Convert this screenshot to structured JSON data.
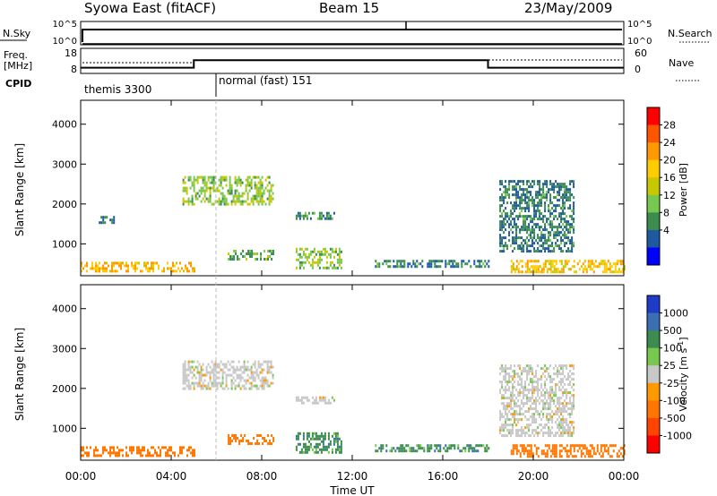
{
  "header": {
    "title": "Syowa East (fitACF)",
    "beam": "Beam 15",
    "date": "23/May/2009"
  },
  "status_panels": {
    "nsky_label": "N.Sky",
    "nsearch_label": "N.Search",
    "freq_label_1": "Freq.",
    "freq_label_2": "[MHz]",
    "nave_label": "Nave",
    "cpid_label": "CPID",
    "left_ticks_top": [
      "10^5",
      "10^0"
    ],
    "right_ticks_top": [
      "10^5",
      "10^0"
    ],
    "left_ticks_freq": [
      "18",
      "8"
    ],
    "right_ticks_nave": [
      "60",
      "0"
    ],
    "cpid_segments": [
      {
        "label": "themis 3300",
        "start_hour": 0,
        "end_hour": 6
      },
      {
        "label": "normal (fast) 151",
        "start_hour": 6,
        "end_hour": 24
      }
    ],
    "freq_steps": [
      {
        "start_hour": 0,
        "end_hour": 5,
        "level": 0.3
      },
      {
        "start_hour": 5,
        "end_hour": 18,
        "level": 0.6
      },
      {
        "start_hour": 18,
        "end_hour": 24,
        "level": 0.3
      }
    ]
  },
  "power_colorbar": {
    "label": "Power [dB]",
    "ticks": [
      "28",
      "24",
      "20",
      "16",
      "12",
      "8",
      "4"
    ],
    "colors": [
      "#ff0000",
      "#ff5500",
      "#ff9900",
      "#ffcc00",
      "#c8c800",
      "#78c850",
      "#3c8c50",
      "#1e5aa0",
      "#0000ff"
    ]
  },
  "velocity_colorbar": {
    "label": "Velocity [m s",
    "label_sup": "-1",
    "label_end": "]",
    "ticks": [
      "1000",
      "500",
      "100",
      "25",
      "-25",
      "-100",
      "-500",
      "-1000"
    ],
    "colors": [
      "#1e3cc8",
      "#3c6eb4",
      "#3c8c50",
      "#78c850",
      "#c8c8c8",
      "#ff9900",
      "#ff7700",
      "#ff4400",
      "#ff0000"
    ]
  },
  "chart_data": {
    "type": "heatmap",
    "xlabel": "Time UT",
    "x_ticks": [
      "00:00",
      "04:00",
      "08:00",
      "12:00",
      "16:00",
      "20:00",
      "00:00"
    ],
    "xlim_hours": [
      0,
      24
    ],
    "ylabel": "Slant Range [km]",
    "y_ticks": [
      "1000",
      "2000",
      "3000",
      "4000"
    ],
    "ylim_km": [
      200,
      4600
    ],
    "panels": [
      {
        "name": "Power",
        "echo_regions": [
          {
            "t0": 0.0,
            "t1": 5.0,
            "r0": 300,
            "r1": 550,
            "value": 20
          },
          {
            "t0": 0.8,
            "t1": 1.5,
            "r0": 1550,
            "r1": 1700,
            "value": 6
          },
          {
            "t0": 4.5,
            "t1": 8.5,
            "r0": 2000,
            "r1": 2700,
            "value": 12
          },
          {
            "t0": 6.5,
            "t1": 8.5,
            "r0": 600,
            "r1": 850,
            "value": 10
          },
          {
            "t0": 9.5,
            "t1": 11.2,
            "r0": 1600,
            "r1": 1800,
            "value": 8
          },
          {
            "t0": 9.5,
            "t1": 11.5,
            "r0": 400,
            "r1": 900,
            "value": 12
          },
          {
            "t0": 13.0,
            "t1": 18.0,
            "r0": 400,
            "r1": 600,
            "value": 6
          },
          {
            "t0": 18.5,
            "t1": 21.8,
            "r0": 800,
            "r1": 2600,
            "value": 6
          },
          {
            "t0": 19.0,
            "t1": 24.0,
            "r0": 300,
            "r1": 600,
            "value": 18
          }
        ]
      },
      {
        "name": "Velocity",
        "echo_regions": [
          {
            "t0": 0.0,
            "t1": 5.0,
            "r0": 300,
            "r1": 550,
            "value": -200
          },
          {
            "t0": 4.5,
            "t1": 8.5,
            "r0": 2000,
            "r1": 2700,
            "value": 0
          },
          {
            "t0": 6.5,
            "t1": 8.5,
            "r0": 600,
            "r1": 850,
            "value": -200
          },
          {
            "t0": 9.5,
            "t1": 11.2,
            "r0": 1600,
            "r1": 1800,
            "value": 0
          },
          {
            "t0": 9.5,
            "t1": 11.5,
            "r0": 400,
            "r1": 900,
            "value": 80
          },
          {
            "t0": 13.0,
            "t1": 18.0,
            "r0": 400,
            "r1": 600,
            "value": 80
          },
          {
            "t0": 18.5,
            "t1": 21.8,
            "r0": 800,
            "r1": 2600,
            "value": 0
          },
          {
            "t0": 19.0,
            "t1": 24.0,
            "r0": 300,
            "r1": 600,
            "value": -150
          }
        ]
      }
    ]
  }
}
